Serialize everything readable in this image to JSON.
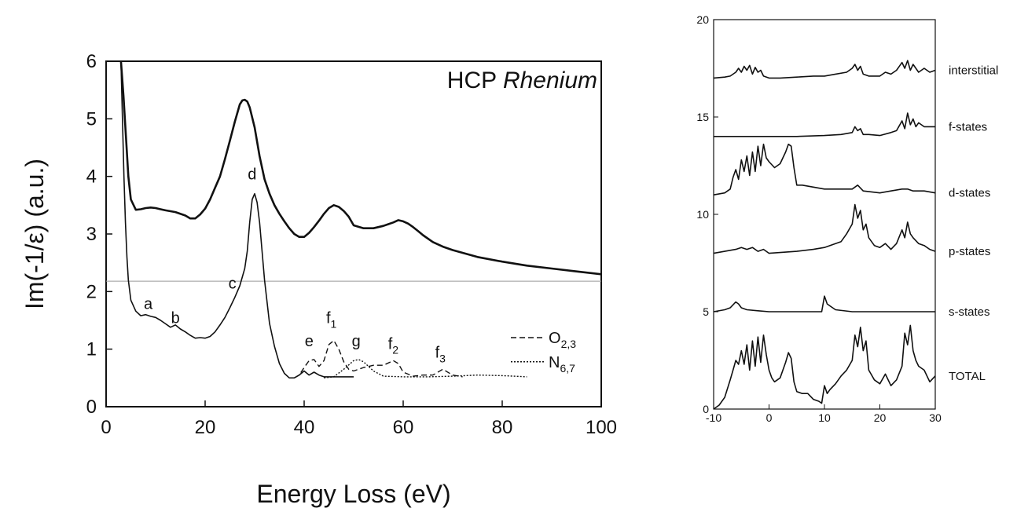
{
  "chart_data": [
    {
      "type": "line",
      "title": "HCP Rhenium",
      "title_plain": "HCP ",
      "title_italic": "Rhenium",
      "xlabel": "Energy Loss (eV)",
      "ylabel": "Im(-1/ε) (a.u.)",
      "xlim": [
        0,
        100
      ],
      "ylim": [
        0,
        6
      ],
      "xticks": [
        0,
        20,
        40,
        60,
        80,
        100
      ],
      "yticks": [
        0,
        1,
        2,
        3,
        4,
        5,
        6
      ],
      "baseline_y": 2.18,
      "series": [
        {
          "style": "thick-solid",
          "x": [
            3.0,
            3.5,
            4.0,
            4.5,
            5.0,
            6.0,
            7.0,
            8.0,
            9.0,
            10,
            11,
            12,
            14,
            16,
            17,
            18,
            19,
            20,
            21,
            22,
            23,
            24,
            25,
            26,
            27,
            27.5,
            28,
            28.5,
            29,
            30,
            31,
            32,
            33,
            34,
            35,
            36,
            37,
            38,
            39,
            40,
            41,
            42,
            43,
            44,
            45,
            46,
            47,
            48,
            49,
            50,
            52,
            54,
            55,
            56,
            57,
            58,
            59,
            60,
            61,
            62,
            63,
            64,
            66,
            68,
            70,
            75,
            80,
            85,
            90,
            95,
            100
          ],
          "y": [
            6.0,
            5.4,
            4.7,
            4.0,
            3.6,
            3.42,
            3.43,
            3.45,
            3.46,
            3.45,
            3.43,
            3.41,
            3.38,
            3.32,
            3.27,
            3.27,
            3.34,
            3.44,
            3.6,
            3.8,
            4.0,
            4.3,
            4.62,
            4.95,
            5.25,
            5.32,
            5.33,
            5.3,
            5.2,
            4.85,
            4.35,
            3.95,
            3.7,
            3.5,
            3.35,
            3.22,
            3.1,
            3.0,
            2.95,
            2.95,
            3.02,
            3.12,
            3.23,
            3.35,
            3.45,
            3.5,
            3.47,
            3.4,
            3.3,
            3.15,
            3.1,
            3.1,
            3.12,
            3.14,
            3.17,
            3.2,
            3.24,
            3.22,
            3.18,
            3.12,
            3.05,
            2.98,
            2.86,
            2.78,
            2.72,
            2.6,
            2.52,
            2.45,
            2.4,
            2.35,
            2.3
          ]
        },
        {
          "style": "thin-solid",
          "x": [
            3.0,
            3.3,
            3.6,
            3.9,
            4.2,
            4.5,
            5.0,
            6.0,
            7.0,
            8.0,
            9.0,
            10,
            11,
            12,
            13,
            14,
            15,
            16,
            17,
            18,
            19,
            20,
            21,
            22,
            23,
            24,
            25,
            26,
            27,
            28,
            28.5,
            29,
            29.5,
            30,
            30.5,
            31,
            32,
            33,
            34,
            35,
            36,
            37,
            38,
            39,
            40,
            41,
            42,
            43,
            44,
            45,
            46,
            47,
            48,
            49,
            50
          ],
          "y": [
            6.0,
            5.0,
            4.0,
            3.2,
            2.6,
            2.2,
            1.85,
            1.66,
            1.58,
            1.6,
            1.57,
            1.55,
            1.5,
            1.44,
            1.38,
            1.42,
            1.35,
            1.3,
            1.24,
            1.19,
            1.2,
            1.19,
            1.22,
            1.3,
            1.42,
            1.55,
            1.72,
            1.9,
            2.1,
            2.4,
            2.7,
            3.2,
            3.6,
            3.7,
            3.55,
            3.2,
            2.2,
            1.45,
            1.05,
            0.75,
            0.58,
            0.5,
            0.5,
            0.55,
            0.62,
            0.55,
            0.6,
            0.55,
            0.52,
            0.52,
            0.52,
            0.52,
            0.52,
            0.52,
            0.52
          ]
        },
        {
          "name": "O2,3",
          "style": "dashed",
          "x": [
            38,
            39,
            40,
            41,
            42,
            43,
            44,
            45,
            46,
            47,
            48,
            49,
            50,
            52,
            54,
            56,
            58,
            59,
            60,
            62,
            64,
            66,
            68,
            70,
            72
          ],
          "y": [
            0.5,
            0.55,
            0.68,
            0.8,
            0.82,
            0.7,
            0.8,
            1.08,
            1.15,
            1.0,
            0.78,
            0.65,
            0.62,
            0.68,
            0.72,
            0.72,
            0.8,
            0.75,
            0.6,
            0.53,
            0.55,
            0.55,
            0.65,
            0.55,
            0.52
          ]
        },
        {
          "name": "N6,7",
          "style": "dotted",
          "x": [
            44,
            46,
            48,
            50,
            51,
            52,
            54,
            56,
            60,
            65,
            70,
            75,
            80,
            85
          ],
          "y": [
            0.5,
            0.52,
            0.65,
            0.8,
            0.82,
            0.78,
            0.62,
            0.53,
            0.52,
            0.52,
            0.53,
            0.55,
            0.54,
            0.52
          ]
        }
      ],
      "annotations": [
        {
          "text": "a",
          "x": 8.5,
          "y": 1.7
        },
        {
          "text": "b",
          "x": 14.0,
          "y": 1.45
        },
        {
          "text": "c",
          "x": 25.5,
          "y": 2.05
        },
        {
          "text": "d",
          "x": 29.5,
          "y": 3.95
        },
        {
          "text": "e",
          "x": 41.0,
          "y": 1.05
        },
        {
          "text": "f",
          "sub": "1",
          "x": 45.5,
          "y": 1.45
        },
        {
          "text": "g",
          "x": 50.5,
          "y": 1.05
        },
        {
          "text": "f",
          "sub": "2",
          "x": 58.0,
          "y": 1.0
        },
        {
          "text": "f",
          "sub": "3",
          "x": 67.5,
          "y": 0.85
        }
      ],
      "legend": [
        {
          "main": "O",
          "sub": "2,3",
          "style": "dashed"
        },
        {
          "main": "N",
          "sub": "6,7",
          "style": "dotted"
        }
      ],
      "legend_position": "lower-right"
    },
    {
      "type": "line",
      "xlim": [
        -10,
        30
      ],
      "ylim": [
        0,
        20
      ],
      "xticks": [
        -10,
        0,
        10,
        20,
        30
      ],
      "yticks": [
        0,
        5,
        10,
        15,
        20
      ],
      "series": [
        {
          "name": "interstitial",
          "x": [
            -10,
            -8,
            -7,
            -6,
            -5.5,
            -5,
            -4.5,
            -4,
            -3.5,
            -3,
            -2.5,
            -2,
            -1.5,
            -1,
            0,
            2,
            5,
            8,
            10,
            12,
            14,
            15,
            15.5,
            16,
            16.5,
            17,
            18,
            20,
            21,
            22,
            23,
            24,
            24.5,
            25,
            25.5,
            26,
            27,
            28,
            29,
            30
          ],
          "y": [
            17.0,
            17.05,
            17.1,
            17.3,
            17.5,
            17.3,
            17.6,
            17.4,
            17.65,
            17.2,
            17.55,
            17.3,
            17.4,
            17.1,
            17.0,
            17.0,
            17.05,
            17.1,
            17.1,
            17.2,
            17.3,
            17.5,
            17.7,
            17.4,
            17.6,
            17.2,
            17.1,
            17.1,
            17.3,
            17.2,
            17.4,
            17.8,
            17.5,
            17.9,
            17.4,
            17.7,
            17.3,
            17.5,
            17.3,
            17.4
          ]
        },
        {
          "name": "f-states",
          "x": [
            -10,
            0,
            5,
            10,
            13,
            15,
            15.5,
            16,
            16.5,
            17,
            18,
            20,
            22,
            23,
            24,
            24.5,
            25,
            25.5,
            26,
            26.5,
            27,
            28,
            29,
            30
          ],
          "y": [
            14.0,
            14.0,
            14.0,
            14.05,
            14.1,
            14.2,
            14.5,
            14.3,
            14.4,
            14.1,
            14.1,
            14.05,
            14.2,
            14.3,
            14.8,
            14.4,
            15.2,
            14.6,
            14.9,
            14.5,
            14.7,
            14.5,
            14.5,
            14.5
          ]
        },
        {
          "name": "d-states",
          "x": [
            -10,
            -8,
            -7,
            -6.5,
            -6,
            -5.5,
            -5,
            -4.5,
            -4,
            -3.5,
            -3,
            -2.5,
            -2,
            -1.5,
            -1,
            -0.5,
            0,
            1,
            2,
            3,
            3.5,
            4,
            4.5,
            5,
            6,
            8,
            10,
            12,
            15,
            16,
            17,
            20,
            22,
            24,
            25,
            26,
            28,
            30
          ],
          "y": [
            11.0,
            11.1,
            11.3,
            11.9,
            12.3,
            11.8,
            12.8,
            12.2,
            13.0,
            12.0,
            13.2,
            12.2,
            13.5,
            12.5,
            13.6,
            12.9,
            12.7,
            12.4,
            12.6,
            13.2,
            13.6,
            13.5,
            12.4,
            11.5,
            11.5,
            11.4,
            11.3,
            11.3,
            11.3,
            11.5,
            11.2,
            11.1,
            11.2,
            11.3,
            11.3,
            11.2,
            11.2,
            11.1
          ]
        },
        {
          "name": "p-states",
          "x": [
            -10,
            -8,
            -6,
            -5,
            -4,
            -3,
            -2,
            -1,
            0,
            5,
            8,
            10,
            12,
            13,
            14,
            15,
            15.5,
            16,
            16.5,
            17,
            17.5,
            18,
            19,
            20,
            21,
            22,
            23,
            24,
            24.5,
            25,
            25.5,
            26,
            27,
            28,
            29,
            30
          ],
          "y": [
            8.0,
            8.1,
            8.2,
            8.3,
            8.2,
            8.3,
            8.1,
            8.2,
            8.0,
            8.1,
            8.2,
            8.3,
            8.5,
            8.6,
            9.0,
            9.5,
            10.5,
            9.8,
            10.2,
            9.2,
            9.5,
            8.8,
            8.4,
            8.3,
            8.5,
            8.2,
            8.5,
            9.2,
            8.8,
            9.6,
            9.0,
            8.8,
            8.5,
            8.4,
            8.2,
            8.1
          ]
        },
        {
          "name": "s-states",
          "x": [
            -10,
            -8,
            -7,
            -6,
            -5.5,
            -5,
            -4,
            -2,
            0,
            5,
            9.5,
            10,
            10.5,
            11,
            12,
            15,
            20,
            25,
            30
          ],
          "y": [
            5.0,
            5.1,
            5.2,
            5.5,
            5.4,
            5.2,
            5.1,
            5.05,
            5.0,
            5.0,
            5.0,
            5.8,
            5.4,
            5.3,
            5.1,
            5.0,
            5.0,
            5.0,
            5.0
          ]
        },
        {
          "name": "TOTAL",
          "x": [
            -10,
            -9,
            -8,
            -7,
            -6.5,
            -6,
            -5.5,
            -5,
            -4.5,
            -4,
            -3.5,
            -3,
            -2.5,
            -2,
            -1.5,
            -1,
            -0.5,
            0,
            0.5,
            1,
            2,
            3,
            3.5,
            4,
            4.5,
            5,
            6,
            7,
            8,
            9,
            9.5,
            10,
            10.5,
            11,
            12,
            13,
            14,
            15,
            15.5,
            16,
            16.5,
            17,
            17.5,
            18,
            19,
            20,
            21,
            22,
            23,
            24,
            24.5,
            25,
            25.5,
            26,
            26.5,
            27,
            28,
            29,
            30
          ],
          "y": [
            0.0,
            0.2,
            0.6,
            1.5,
            2.0,
            2.5,
            2.3,
            3.0,
            2.3,
            3.3,
            2.0,
            3.5,
            2.2,
            3.7,
            2.4,
            3.8,
            2.8,
            2.0,
            1.6,
            1.4,
            1.6,
            2.4,
            2.9,
            2.6,
            1.4,
            0.9,
            0.8,
            0.8,
            0.5,
            0.4,
            0.3,
            1.2,
            0.8,
            1.0,
            1.3,
            1.7,
            2.0,
            2.5,
            3.8,
            3.2,
            4.2,
            3.0,
            3.5,
            2.0,
            1.5,
            1.3,
            1.8,
            1.2,
            1.5,
            2.2,
            3.9,
            3.3,
            4.3,
            3.0,
            2.5,
            2.2,
            2.0,
            1.4,
            1.7
          ]
        }
      ]
    }
  ]
}
